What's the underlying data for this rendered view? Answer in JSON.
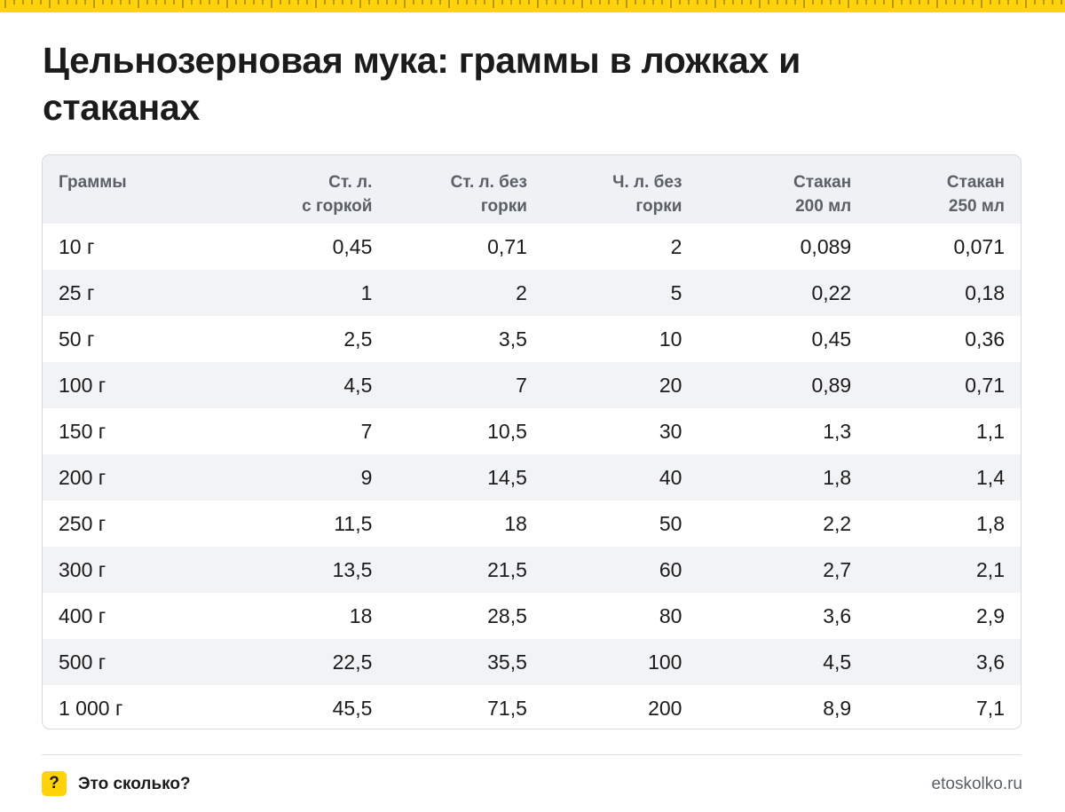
{
  "colors": {
    "accent": "#ffd20a",
    "header_bg": "#eff1f4",
    "stripe_bg": "#f2f3f5"
  },
  "title": "Цельнозерновая мука: граммы в ложках и стаканах",
  "table": {
    "headers": [
      {
        "line1": "Граммы",
        "line2": ""
      },
      {
        "line1": "Ст. л.",
        "line2": "с горкой"
      },
      {
        "line1": "Ст. л. без",
        "line2": "горки"
      },
      {
        "line1": "Ч. л. без",
        "line2": "горки"
      },
      {
        "line1": "Стакан",
        "line2": "200 мл"
      },
      {
        "line1": "Стакан",
        "line2": "250 мл"
      }
    ],
    "rows": [
      [
        "10 г",
        "0,45",
        "0,71",
        "2",
        "0,089",
        "0,071"
      ],
      [
        "25 г",
        "1",
        "2",
        "5",
        "0,22",
        "0,18"
      ],
      [
        "50 г",
        "2,5",
        "3,5",
        "10",
        "0,45",
        "0,36"
      ],
      [
        "100 г",
        "4,5",
        "7",
        "20",
        "0,89",
        "0,71"
      ],
      [
        "150 г",
        "7",
        "10,5",
        "30",
        "1,3",
        "1,1"
      ],
      [
        "200 г",
        "9",
        "14,5",
        "40",
        "1,8",
        "1,4"
      ],
      [
        "250 г",
        "11,5",
        "18",
        "50",
        "2,2",
        "1,8"
      ],
      [
        "300 г",
        "13,5",
        "21,5",
        "60",
        "2,7",
        "2,1"
      ],
      [
        "400 г",
        "18",
        "28,5",
        "80",
        "3,6",
        "2,9"
      ],
      [
        "500 г",
        "22,5",
        "35,5",
        "100",
        "4,5",
        "3,6"
      ],
      [
        "1 000 г",
        "45,5",
        "71,5",
        "200",
        "8,9",
        "7,1"
      ]
    ]
  },
  "footer": {
    "badge_symbol": "?",
    "brand": "Это сколько?",
    "site": "etoskolko.ru"
  }
}
